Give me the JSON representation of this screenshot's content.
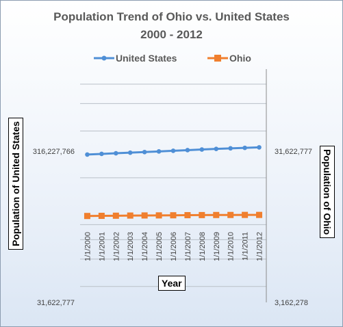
{
  "chart_data": {
    "type": "line",
    "title_line1": "Population Trend of  Ohio vs. United States",
    "title_line2": "2000 - 2012",
    "xlabel": "Year",
    "ylabel_left": "Population of United States",
    "ylabel_right": "Population of Ohio",
    "left_axis": {
      "scale": "log",
      "range": [
        31622777,
        1000000000
      ],
      "tick_labels": [
        "316,227,766",
        "31,622,777"
      ]
    },
    "right_axis": {
      "scale": "log",
      "range": [
        3162278,
        100000000
      ],
      "tick_labels": [
        "31,622,777",
        "3,162,278"
      ]
    },
    "grid": "horizontal",
    "legend_position": "top",
    "categories": [
      "1/1/2000",
      "1/1/2001",
      "1/1/2002",
      "1/1/2003",
      "1/1/2004",
      "1/1/2005",
      "1/1/2006",
      "1/1/2007",
      "1/1/2008",
      "1/1/2009",
      "1/1/2010",
      "1/1/2011",
      "1/1/2012"
    ],
    "series": [
      {
        "name": "United States",
        "axis": "left",
        "color": "#4f8fd6",
        "marker": "circle",
        "values": [
          282162411,
          284968955,
          287625193,
          290107933,
          292805298,
          295516599,
          298379912,
          301231207,
          304093966,
          306771529,
          309330219,
          311591917,
          313914040
        ]
      },
      {
        "name": "Ohio",
        "axis": "right",
        "color": "#f07f2e",
        "marker": "square",
        "values": [
          11363543,
          11387404,
          11407889,
          11434788,
          11452251,
          11463320,
          11481213,
          11500468,
          11515391,
          11528896,
          11536504,
          11544951,
          11544225
        ]
      }
    ]
  }
}
